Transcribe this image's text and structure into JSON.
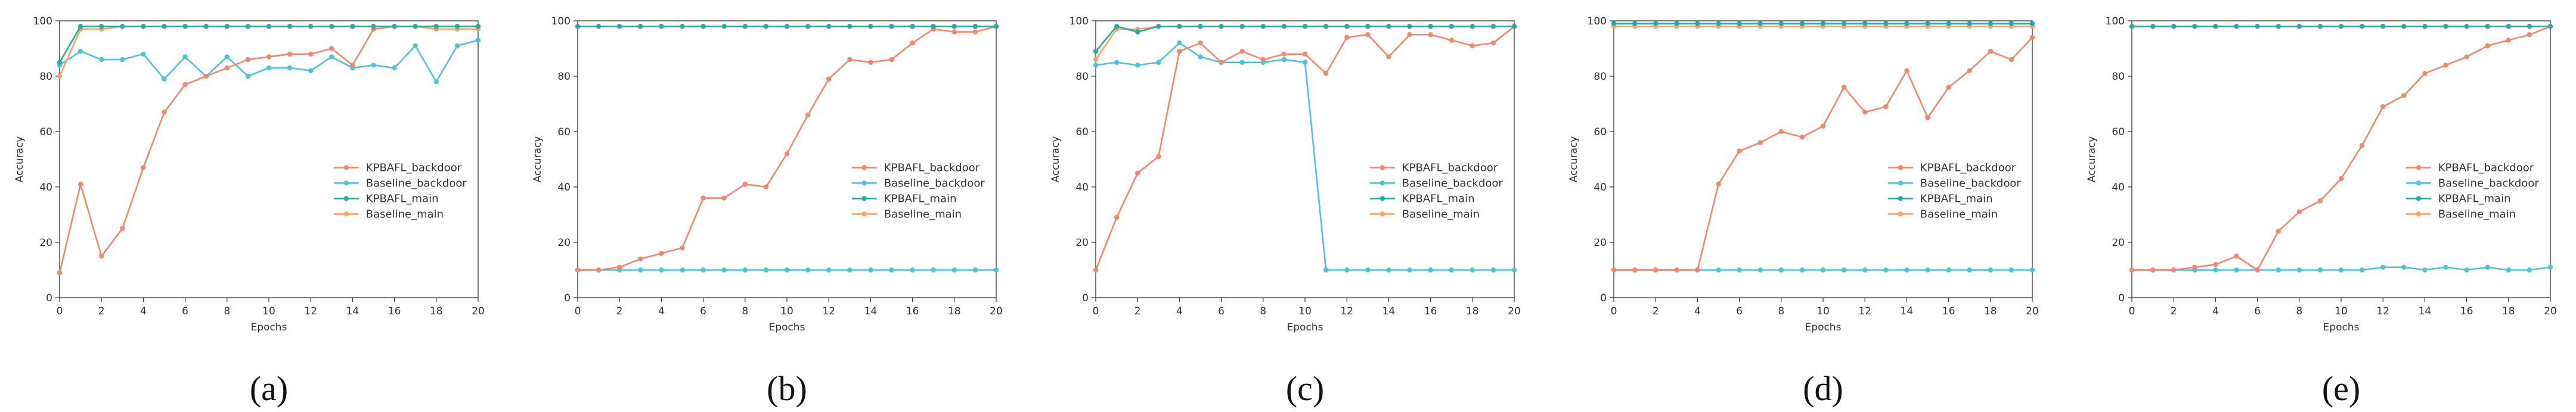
{
  "colors": {
    "kpbafl_backdoor": "#f4866b",
    "baseline_backdoor": "#4fc1d9",
    "kpbafl_main": "#2aa8a6",
    "baseline_main": "#f5a46a",
    "axis": "#333333",
    "grid": "#e6e6e6"
  },
  "chart_data": [
    {
      "type": "line",
      "panel_label": "(a)",
      "xlabel": "Epochs",
      "ylabel": "Accuracy",
      "xlim": [
        0,
        20
      ],
      "ylim": [
        0,
        100
      ],
      "x_ticks": [
        0,
        2,
        4,
        6,
        8,
        10,
        12,
        14,
        16,
        18,
        20
      ],
      "y_ticks": [
        0,
        20,
        40,
        60,
        80,
        100
      ],
      "legend_position": "center-right",
      "x": [
        0,
        1,
        2,
        3,
        4,
        5,
        6,
        7,
        8,
        9,
        10,
        11,
        12,
        13,
        14,
        15,
        16,
        17,
        18,
        19,
        20
      ],
      "series": [
        {
          "name": "KPBAFL_backdoor",
          "color_key": "kpbafl_backdoor",
          "values": [
            9,
            41,
            15,
            25,
            47,
            67,
            77,
            80,
            83,
            86,
            87,
            88,
            88,
            90,
            84,
            97,
            98,
            98,
            98,
            98,
            98
          ]
        },
        {
          "name": "Baseline_backdoor",
          "color_key": "baseline_backdoor",
          "values": [
            84,
            89,
            86,
            86,
            88,
            79,
            87,
            80,
            87,
            80,
            83,
            83,
            82,
            87,
            83,
            84,
            83,
            91,
            78,
            91,
            93
          ]
        },
        {
          "name": "KPBAFL_main",
          "color_key": "kpbafl_main",
          "values": [
            85,
            98,
            98,
            98,
            98,
            98,
            98,
            98,
            98,
            98,
            98,
            98,
            98,
            98,
            98,
            98,
            98,
            98,
            98,
            98,
            98
          ]
        },
        {
          "name": "Baseline_main",
          "color_key": "baseline_main",
          "values": [
            80,
            97,
            97,
            98,
            98,
            98,
            98,
            98,
            98,
            98,
            98,
            98,
            98,
            98,
            98,
            98,
            98,
            98,
            97,
            97,
            97
          ]
        }
      ]
    },
    {
      "type": "line",
      "panel_label": "(b)",
      "xlabel": "Epochs",
      "ylabel": "Accuracy",
      "xlim": [
        0,
        20
      ],
      "ylim": [
        0,
        100
      ],
      "x_ticks": [
        0,
        2,
        4,
        6,
        8,
        10,
        12,
        14,
        16,
        18,
        20
      ],
      "y_ticks": [
        0,
        20,
        40,
        60,
        80,
        100
      ],
      "legend_position": "center-right",
      "x": [
        0,
        1,
        2,
        3,
        4,
        5,
        6,
        7,
        8,
        9,
        10,
        11,
        12,
        13,
        14,
        15,
        16,
        17,
        18,
        19,
        20
      ],
      "series": [
        {
          "name": "KPBAFL_backdoor",
          "color_key": "kpbafl_backdoor",
          "values": [
            10,
            10,
            11,
            14,
            16,
            18,
            36,
            36,
            41,
            40,
            52,
            66,
            79,
            86,
            85,
            86,
            92,
            97,
            96,
            96,
            98
          ]
        },
        {
          "name": "Baseline_backdoor",
          "color_key": "baseline_backdoor",
          "values": [
            10,
            10,
            10,
            10,
            10,
            10,
            10,
            10,
            10,
            10,
            10,
            10,
            10,
            10,
            10,
            10,
            10,
            10,
            10,
            10,
            10
          ]
        },
        {
          "name": "KPBAFL_main",
          "color_key": "kpbafl_main",
          "values": [
            98,
            98,
            98,
            98,
            98,
            98,
            98,
            98,
            98,
            98,
            98,
            98,
            98,
            98,
            98,
            98,
            98,
            98,
            98,
            98,
            98
          ]
        },
        {
          "name": "Baseline_main",
          "color_key": "baseline_main",
          "values": [
            98,
            98,
            98,
            98,
            98,
            98,
            98,
            98,
            98,
            98,
            98,
            98,
            98,
            98,
            98,
            98,
            98,
            98,
            98,
            98,
            98
          ]
        }
      ]
    },
    {
      "type": "line",
      "panel_label": "(c)",
      "xlabel": "Epochs",
      "ylabel": "Accuracy",
      "xlim": [
        0,
        20
      ],
      "ylim": [
        0,
        100
      ],
      "x_ticks": [
        0,
        2,
        4,
        6,
        8,
        10,
        12,
        14,
        16,
        18,
        20
      ],
      "y_ticks": [
        0,
        20,
        40,
        60,
        80,
        100
      ],
      "legend_position": "center-right",
      "x": [
        0,
        1,
        2,
        3,
        4,
        5,
        6,
        7,
        8,
        9,
        10,
        11,
        12,
        13,
        14,
        15,
        16,
        17,
        18,
        19,
        20
      ],
      "series": [
        {
          "name": "KPBAFL_backdoor",
          "color_key": "kpbafl_backdoor",
          "values": [
            10,
            29,
            45,
            51,
            89,
            92,
            85,
            89,
            86,
            88,
            88,
            81,
            94,
            95,
            87,
            95,
            95,
            93,
            91,
            92,
            98
          ]
        },
        {
          "name": "Baseline_backdoor",
          "color_key": "baseline_backdoor",
          "values": [
            84,
            85,
            84,
            85,
            92,
            87,
            85,
            85,
            85,
            86,
            85,
            10,
            10,
            10,
            10,
            10,
            10,
            10,
            10,
            10,
            10
          ]
        },
        {
          "name": "KPBAFL_main",
          "color_key": "kpbafl_main",
          "values": [
            89,
            98,
            96,
            98,
            98,
            98,
            98,
            98,
            98,
            98,
            98,
            98,
            98,
            98,
            98,
            98,
            98,
            98,
            98,
            98,
            98
          ]
        },
        {
          "name": "Baseline_main",
          "color_key": "baseline_main",
          "values": [
            86,
            97,
            97,
            98,
            98,
            98,
            98,
            98,
            98,
            98,
            98,
            98,
            98,
            98,
            98,
            98,
            98,
            98,
            98,
            98,
            98
          ]
        }
      ]
    },
    {
      "type": "line",
      "panel_label": "(d)",
      "xlabel": "Epochs",
      "ylabel": "Accuracy",
      "xlim": [
        0,
        20
      ],
      "ylim": [
        0,
        100
      ],
      "x_ticks": [
        0,
        2,
        4,
        6,
        8,
        10,
        12,
        14,
        16,
        18,
        20
      ],
      "y_ticks": [
        0,
        20,
        40,
        60,
        80,
        100
      ],
      "legend_position": "center-right",
      "x": [
        0,
        1,
        2,
        3,
        4,
        5,
        6,
        7,
        8,
        9,
        10,
        11,
        12,
        13,
        14,
        15,
        16,
        17,
        18,
        19,
        20
      ],
      "series": [
        {
          "name": "KPBAFL_backdoor",
          "color_key": "kpbafl_backdoor",
          "values": [
            10,
            10,
            10,
            10,
            10,
            41,
            53,
            56,
            60,
            58,
            62,
            76,
            67,
            69,
            82,
            65,
            76,
            82,
            89,
            86,
            94
          ]
        },
        {
          "name": "Baseline_backdoor",
          "color_key": "baseline_backdoor",
          "values": [
            10,
            10,
            10,
            10,
            10,
            10,
            10,
            10,
            10,
            10,
            10,
            10,
            10,
            10,
            10,
            10,
            10,
            10,
            10,
            10,
            10
          ]
        },
        {
          "name": "KPBAFL_main",
          "color_key": "kpbafl_main",
          "values": [
            99,
            99,
            99,
            99,
            99,
            99,
            99,
            99,
            99,
            99,
            99,
            99,
            99,
            99,
            99,
            99,
            99,
            99,
            99,
            99,
            99
          ]
        },
        {
          "name": "Baseline_main",
          "color_key": "baseline_main",
          "values": [
            98,
            98,
            98,
            98,
            98,
            98,
            98,
            98,
            98,
            98,
            98,
            98,
            98,
            98,
            98,
            98,
            98,
            98,
            98,
            98,
            98
          ]
        }
      ]
    },
    {
      "type": "line",
      "panel_label": "(e)",
      "xlabel": "Epochs",
      "ylabel": "Accuracy",
      "xlim": [
        0,
        20
      ],
      "ylim": [
        0,
        100
      ],
      "x_ticks": [
        0,
        2,
        4,
        6,
        8,
        10,
        12,
        14,
        16,
        18,
        20
      ],
      "y_ticks": [
        0,
        20,
        40,
        60,
        80,
        100
      ],
      "legend_position": "center-right",
      "x": [
        0,
        1,
        2,
        3,
        4,
        5,
        6,
        7,
        8,
        9,
        10,
        11,
        12,
        13,
        14,
        15,
        16,
        17,
        18,
        19,
        20
      ],
      "series": [
        {
          "name": "KPBAFL_backdoor",
          "color_key": "kpbafl_backdoor",
          "values": [
            10,
            10,
            10,
            11,
            12,
            15,
            10,
            24,
            31,
            35,
            43,
            55,
            69,
            73,
            81,
            84,
            87,
            91,
            93,
            95,
            98
          ]
        },
        {
          "name": "Baseline_backdoor",
          "color_key": "baseline_backdoor",
          "values": [
            10,
            10,
            10,
            10,
            10,
            10,
            10,
            10,
            10,
            10,
            10,
            10,
            11,
            11,
            10,
            11,
            10,
            11,
            10,
            10,
            11
          ]
        },
        {
          "name": "KPBAFL_main",
          "color_key": "kpbafl_main",
          "values": [
            98,
            98,
            98,
            98,
            98,
            98,
            98,
            98,
            98,
            98,
            98,
            98,
            98,
            98,
            98,
            98,
            98,
            98,
            98,
            98,
            98
          ]
        },
        {
          "name": "Baseline_main",
          "color_key": "baseline_main",
          "values": [
            98,
            98,
            98,
            98,
            98,
            98,
            98,
            98,
            98,
            98,
            98,
            98,
            98,
            98,
            98,
            98,
            98,
            98,
            98,
            98,
            98
          ]
        }
      ]
    }
  ]
}
